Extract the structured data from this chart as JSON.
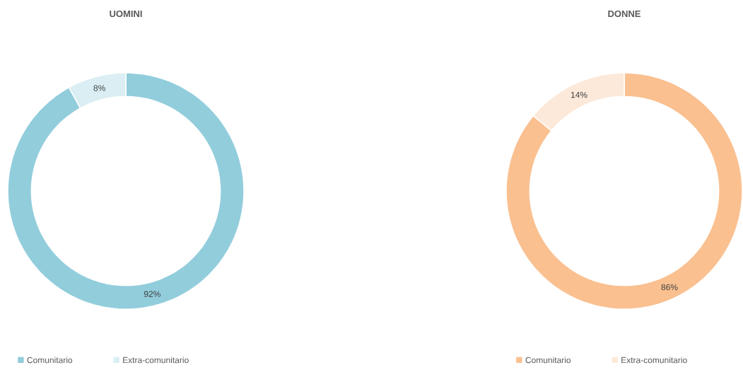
{
  "chart_data": [
    {
      "type": "donut",
      "title": "UOMINI",
      "categories": [
        "Comunitario",
        "Extra-comunitario"
      ],
      "values": [
        92,
        8
      ],
      "colors": [
        "#92cddc",
        "#daeef3"
      ],
      "value_labels": [
        "92%",
        "8%"
      ],
      "legend": "bottom"
    },
    {
      "type": "donut",
      "title": "DONNE",
      "categories": [
        "Comunitario",
        "Extra-comunitario"
      ],
      "values": [
        86,
        14
      ],
      "colors": [
        "#fac090",
        "#fde9d9"
      ],
      "value_labels": [
        "86%",
        "14%"
      ],
      "legend": "bottom"
    }
  ]
}
